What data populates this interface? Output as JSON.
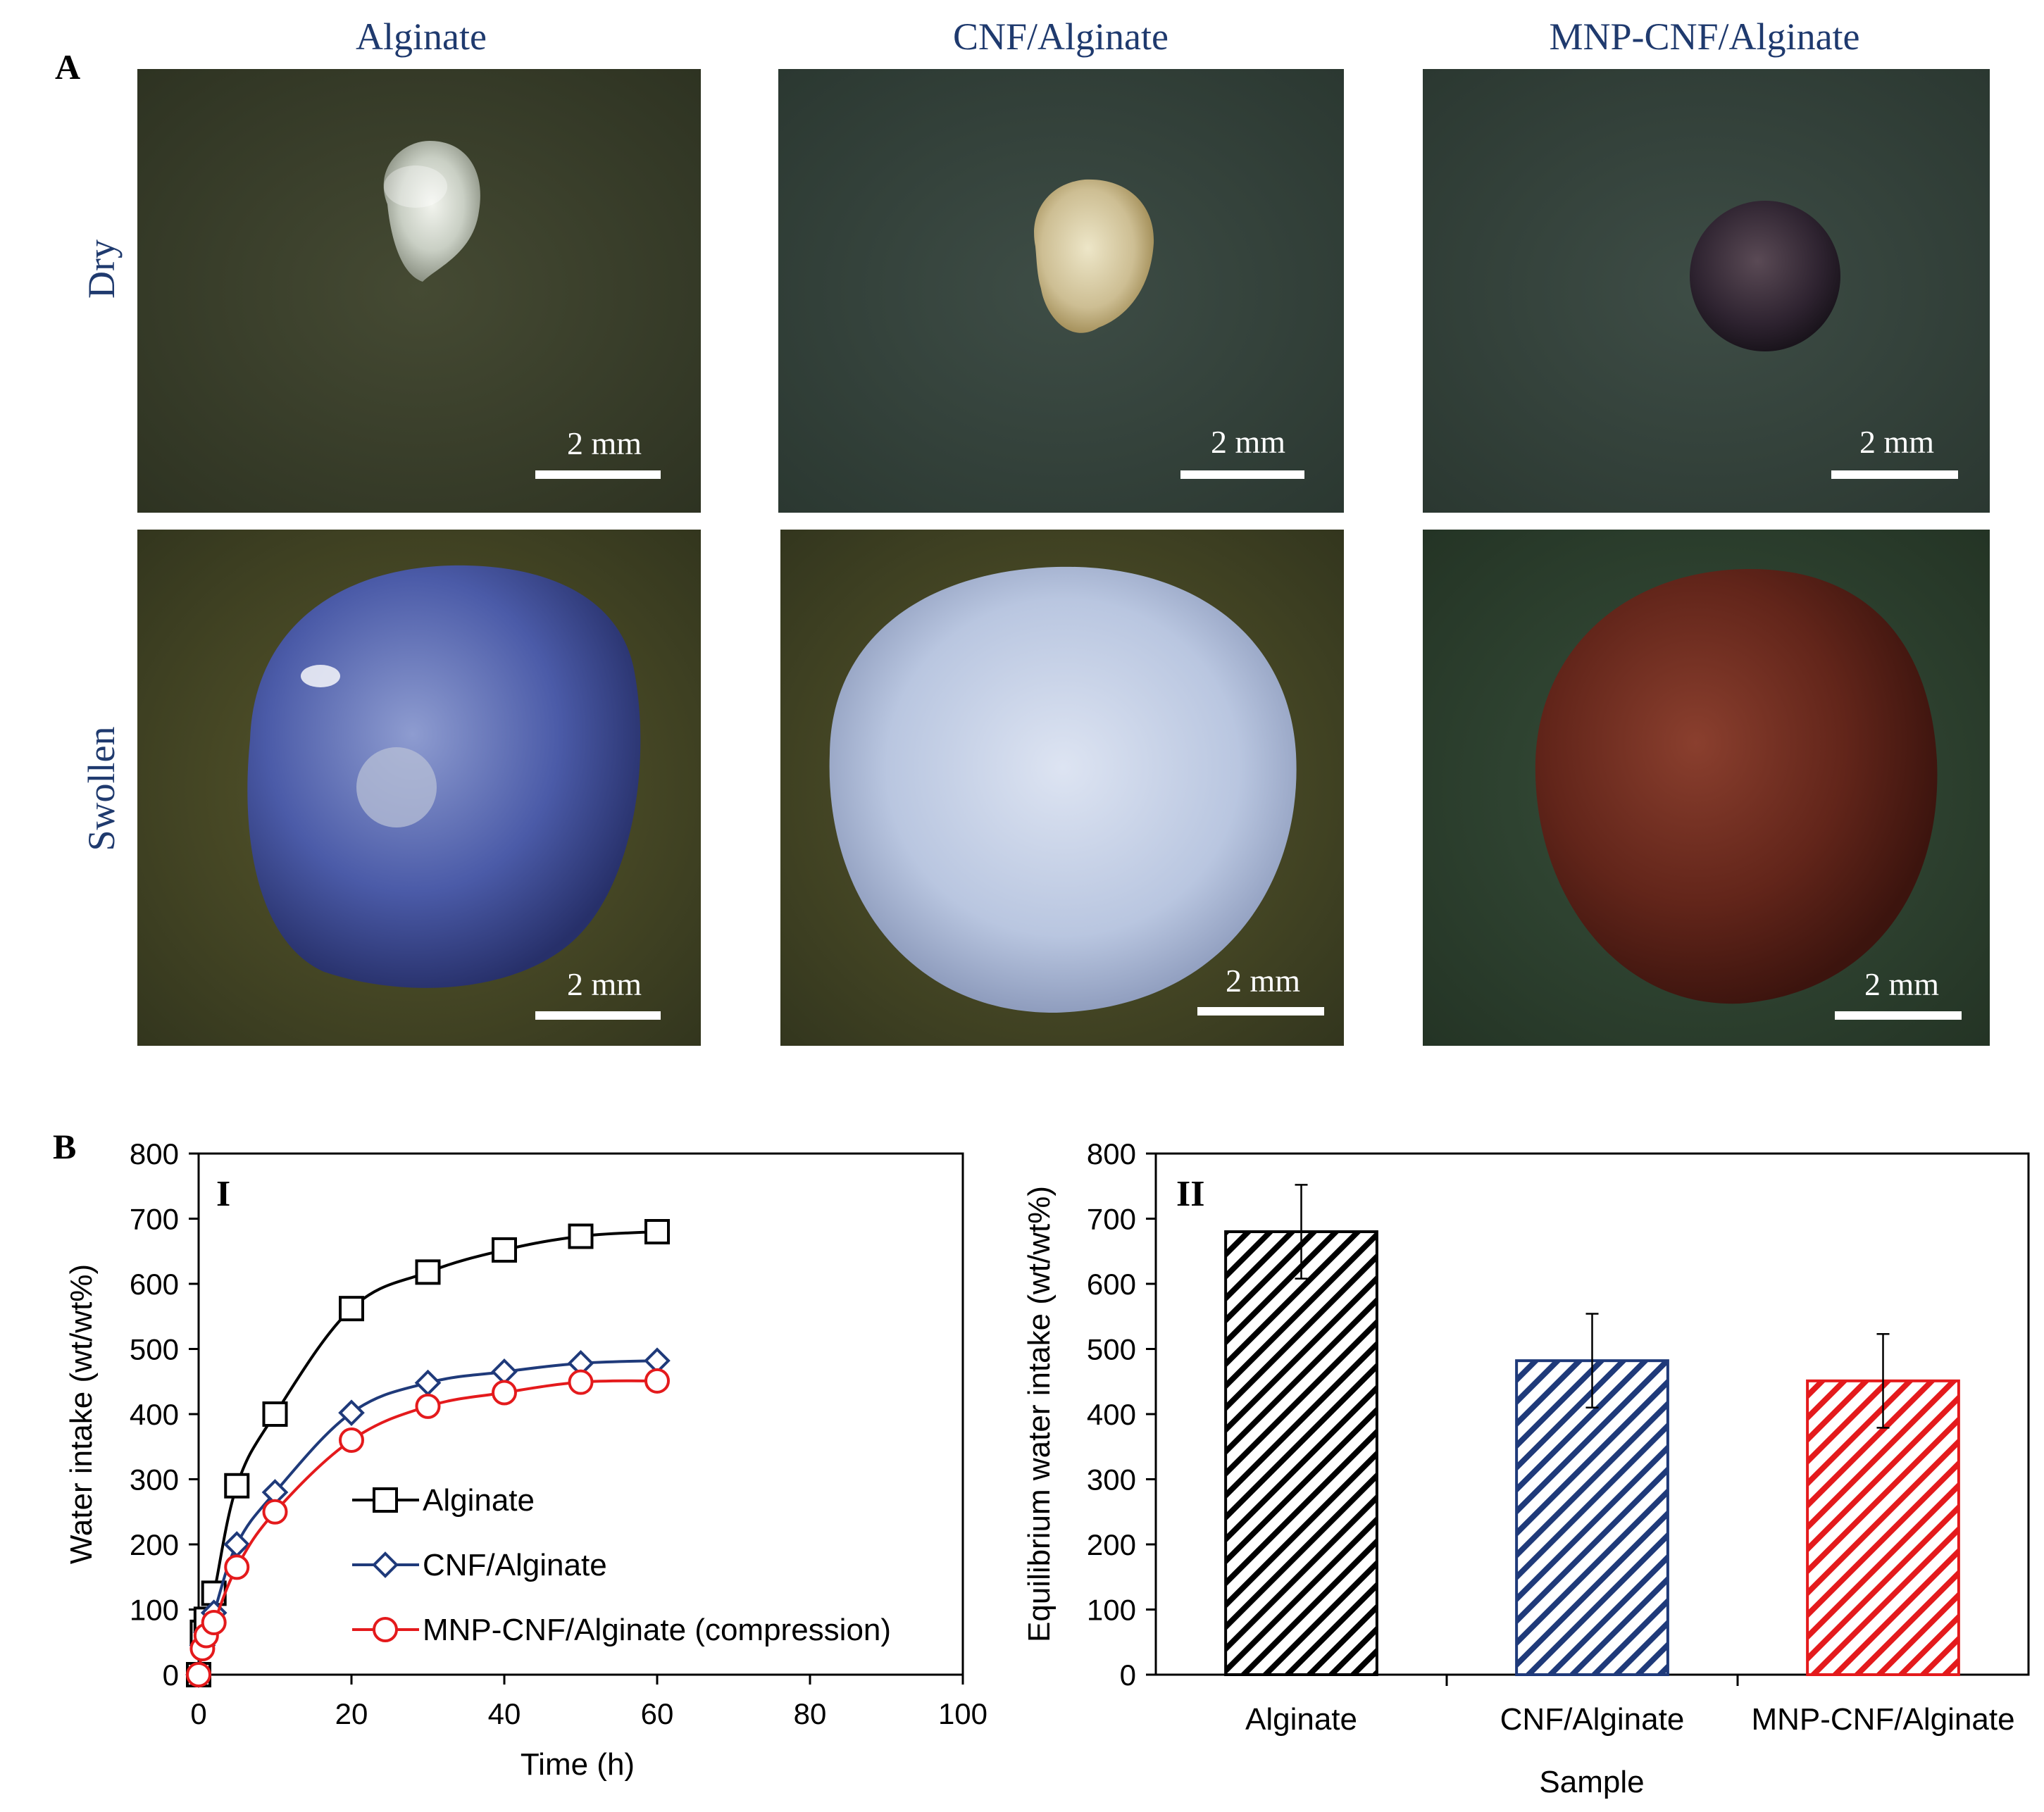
{
  "panel_a": {
    "label": "A",
    "columns": [
      "Alginate",
      "CNF/Alginate",
      "MNP-CNF/Alginate"
    ],
    "rows": [
      "Dry",
      "Swollen"
    ],
    "scale_bar": "2 mm",
    "colors": {
      "title": "#1F3A6E",
      "photo_bg_dry": "#3A3F2A",
      "photo_bg_swollen": "#4A4A25"
    }
  },
  "panel_b_label": "B",
  "chart_data": [
    {
      "type": "line",
      "panel": "I",
      "xlabel": "Time (h)",
      "ylabel": "Water intake (wt/wt%)",
      "xlim": [
        0,
        100
      ],
      "ylim": [
        0,
        800
      ],
      "xticks": [
        0,
        20,
        40,
        60,
        80,
        100
      ],
      "yticks": [
        0,
        100,
        200,
        300,
        400,
        500,
        600,
        700,
        800
      ],
      "grid": false,
      "legend_position": "lower-middle",
      "x": [
        0,
        0.5,
        1,
        2,
        5,
        10,
        20,
        30,
        40,
        50,
        60
      ],
      "series": [
        {
          "name": "Alginate",
          "marker": "square",
          "color": "#000000",
          "values": [
            0,
            65,
            85,
            125,
            290,
            400,
            562,
            618,
            652,
            673,
            680
          ]
        },
        {
          "name": "CNF/Alginate",
          "marker": "diamond",
          "color": "#1F3A7A",
          "values": [
            0,
            45,
            65,
            95,
            200,
            280,
            402,
            448,
            465,
            478,
            482
          ]
        },
        {
          "name": "MNP-CNF/Alginate (compression)",
          "marker": "circle",
          "color": "#E41A1C",
          "values": [
            0,
            40,
            60,
            80,
            165,
            250,
            360,
            412,
            433,
            449,
            451
          ]
        }
      ]
    },
    {
      "type": "bar",
      "panel": "II",
      "xlabel": "Sample",
      "ylabel": "Equilibrium water intake (wt/wt%)",
      "ylim": [
        0,
        800
      ],
      "yticks": [
        0,
        100,
        200,
        300,
        400,
        500,
        600,
        700,
        800
      ],
      "categories": [
        "Alginate",
        "CNF/Alginate",
        "MNP-CNF/Alginate"
      ],
      "values": [
        680,
        482,
        451
      ],
      "errors": [
        72,
        72,
        72
      ],
      "colors": [
        "#000000",
        "#1F3A7A",
        "#E41A1C"
      ],
      "pattern": "diagonal-hatch",
      "grid": false
    }
  ]
}
